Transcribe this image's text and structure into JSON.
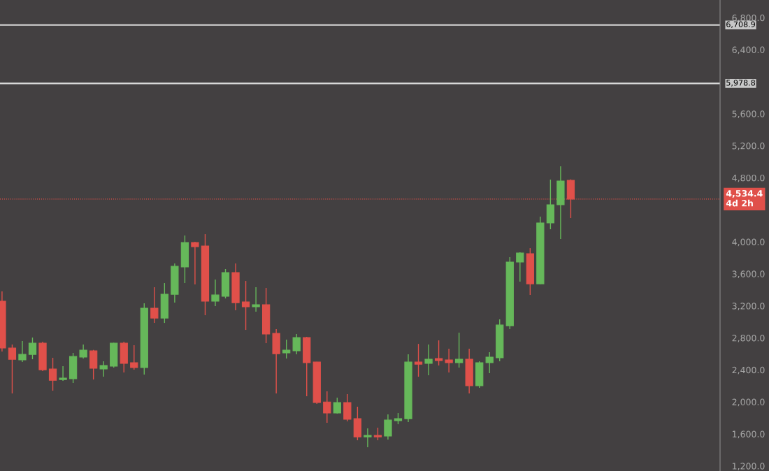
{
  "chart_data": {
    "type": "candlestick",
    "categories": [
      null,
      null,
      null,
      null,
      null,
      null,
      null,
      null,
      null,
      null,
      null,
      null,
      null,
      null,
      null,
      null,
      null,
      null,
      null,
      null,
      null,
      null,
      null,
      null,
      null,
      null,
      null,
      null,
      null,
      null,
      null,
      null,
      null,
      null,
      null,
      null,
      null,
      null,
      null,
      null,
      null,
      null,
      null,
      null,
      null,
      null,
      null,
      null,
      null,
      null,
      null,
      null,
      null,
      null,
      null,
      null,
      null,
      null,
      null,
      null,
      null,
      null,
      null,
      null,
      null,
      null,
      null,
      null,
      null,
      null,
      null
    ],
    "ohlc": [
      [
        3258,
        3380,
        2629,
        2673
      ],
      [
        2673,
        2717,
        2106,
        2533
      ],
      [
        2525,
        2760,
        2498,
        2594
      ],
      [
        2594,
        2804,
        2533,
        2734
      ],
      [
        2734,
        2752,
        2385,
        2402
      ],
      [
        2411,
        2551,
        2140,
        2271
      ],
      [
        2280,
        2446,
        2263,
        2298
      ],
      [
        2289,
        2612,
        2237,
        2568
      ],
      [
        2560,
        2717,
        2542,
        2647
      ],
      [
        2638,
        2650,
        2280,
        2420
      ],
      [
        2411,
        2507,
        2315,
        2455
      ],
      [
        2446,
        2740,
        2429,
        2734
      ],
      [
        2734,
        2752,
        2368,
        2481
      ],
      [
        2490,
        2708,
        2402,
        2429
      ],
      [
        2429,
        3232,
        2341,
        3171
      ],
      [
        3171,
        3433,
        2987,
        3048
      ],
      [
        3048,
        3485,
        2987,
        3345
      ],
      [
        3345,
        3729,
        3240,
        3694
      ],
      [
        3686,
        4079,
        3485,
        3991
      ],
      [
        3991,
        4000,
        3467,
        3939
      ],
      [
        3948,
        4096,
        3083,
        3258
      ],
      [
        3258,
        3529,
        3197,
        3336
      ],
      [
        3319,
        3660,
        3293,
        3616
      ],
      [
        3616,
        3729,
        3144,
        3240
      ],
      [
        3249,
        3511,
        2900,
        3188
      ],
      [
        3188,
        3433,
        3127,
        3214
      ],
      [
        3214,
        3424,
        2734,
        2848
      ],
      [
        2856,
        2909,
        2106,
        2603
      ],
      [
        2612,
        2778,
        2542,
        2647
      ],
      [
        2638,
        2848,
        2594,
        2804
      ],
      [
        2804,
        2813,
        2071,
        2490
      ],
      [
        2498,
        2500,
        1975,
        1992
      ],
      [
        1999,
        2132,
        1739,
        1861
      ],
      [
        1861,
        2053,
        1855,
        1992
      ],
      [
        1992,
        2097,
        1756,
        1783
      ],
      [
        1791,
        1940,
        1521,
        1564
      ],
      [
        1564,
        1669,
        1434,
        1582
      ],
      [
        1582,
        1678,
        1521,
        1564
      ],
      [
        1573,
        1844,
        1530,
        1774
      ],
      [
        1765,
        1861,
        1721,
        1791
      ],
      [
        1791,
        2594,
        1748,
        2498
      ],
      [
        2498,
        2725,
        2315,
        2472
      ],
      [
        2481,
        2717,
        2333,
        2533
      ],
      [
        2542,
        2769,
        2455,
        2516
      ],
      [
        2525,
        2664,
        2368,
        2490
      ],
      [
        2490,
        2865,
        2429,
        2533
      ],
      [
        2533,
        2664,
        2106,
        2202
      ],
      [
        2202,
        2507,
        2176,
        2490
      ],
      [
        2490,
        2621,
        2359,
        2560
      ],
      [
        2551,
        3031,
        2507,
        2961
      ],
      [
        2952,
        3808,
        2909,
        3747
      ],
      [
        3747,
        3870,
        3502,
        3860
      ],
      [
        3852,
        3921,
        3337,
        3476
      ],
      [
        3476,
        4314,
        3470,
        4236
      ],
      [
        4236,
        4777,
        4157,
        4463
      ],
      [
        4463,
        4943,
        4035,
        4760
      ],
      [
        4768,
        4780,
        4297,
        4534.4
      ],
      null,
      null,
      null,
      null,
      null,
      null,
      null,
      null,
      null,
      null,
      null,
      null,
      null,
      null
    ],
    "colors": [
      "#e0504a",
      "#e0504a",
      "#66b85a",
      "#66b85a",
      "#e0504a",
      "#e0504a",
      "#66b85a",
      "#66b85a",
      "#66b85a",
      "#e0504a",
      "#66b85a",
      "#66b85a",
      "#e0504a",
      "#e0504a",
      "#66b85a",
      "#e0504a",
      "#66b85a",
      "#66b85a",
      "#66b85a",
      "#e0504a",
      "#e0504a",
      "#66b85a",
      "#66b85a",
      "#e0504a",
      "#e0504a",
      "#66b85a",
      "#e0504a",
      "#e0504a",
      "#66b85a",
      "#66b85a",
      "#e0504a",
      "#e0504a",
      "#e0504a",
      "#66b85a",
      "#e0504a",
      "#e0504a",
      "#66b85a",
      "#e0504a",
      "#66b85a",
      "#66b85a",
      "#66b85a",
      "#e0504a",
      "#66b85a",
      "#e0504a",
      "#e0504a",
      "#66b85a",
      "#e0504a",
      "#66b85a",
      "#66b85a",
      "#66b85a",
      "#66b85a",
      "#66b85a",
      "#e0504a",
      "#66b85a",
      "#66b85a",
      "#66b85a",
      "#e0504a",
      null,
      null,
      null,
      null,
      null,
      null,
      null,
      null,
      null,
      null,
      null,
      null,
      null,
      null
    ],
    "ylim": [
      1137,
      7021
    ],
    "yticks": [
      {
        "value": 1200,
        "label": "1,200.0"
      },
      {
        "value": 1600,
        "label": "1,600.0"
      },
      {
        "value": 2000,
        "label": "2,000.0"
      },
      {
        "value": 2400,
        "label": "2,400.0"
      },
      {
        "value": 2800,
        "label": "2,800.0"
      },
      {
        "value": 3200,
        "label": "3,200.0"
      },
      {
        "value": 3600,
        "label": "3,600.0"
      },
      {
        "value": 4000,
        "label": "4,000.0"
      },
      {
        "value": 4800,
        "label": "4,800.0"
      },
      {
        "value": 5200,
        "label": "5,200.0"
      },
      {
        "value": 5600,
        "label": "5,600.0"
      },
      {
        "value": 6400,
        "label": "6,400.0"
      },
      {
        "value": 6800,
        "label": "6,800.0"
      }
    ],
    "ref_lines": [
      {
        "axis": "y",
        "value": 6708.9,
        "label": "6,708.9",
        "color": "#d8d8d8",
        "line_style": "solid"
      },
      {
        "axis": "y",
        "value": 5978.8,
        "label": "5,978.8",
        "color": "#d8d8d8",
        "line_style": "solid"
      },
      {
        "axis": "y",
        "value": 4534.4,
        "label": "4,534.4\n4d 2h",
        "color": "#e0504a",
        "line_style": "dotted"
      }
    ],
    "tick_labels": "y",
    "grid": false
  }
}
